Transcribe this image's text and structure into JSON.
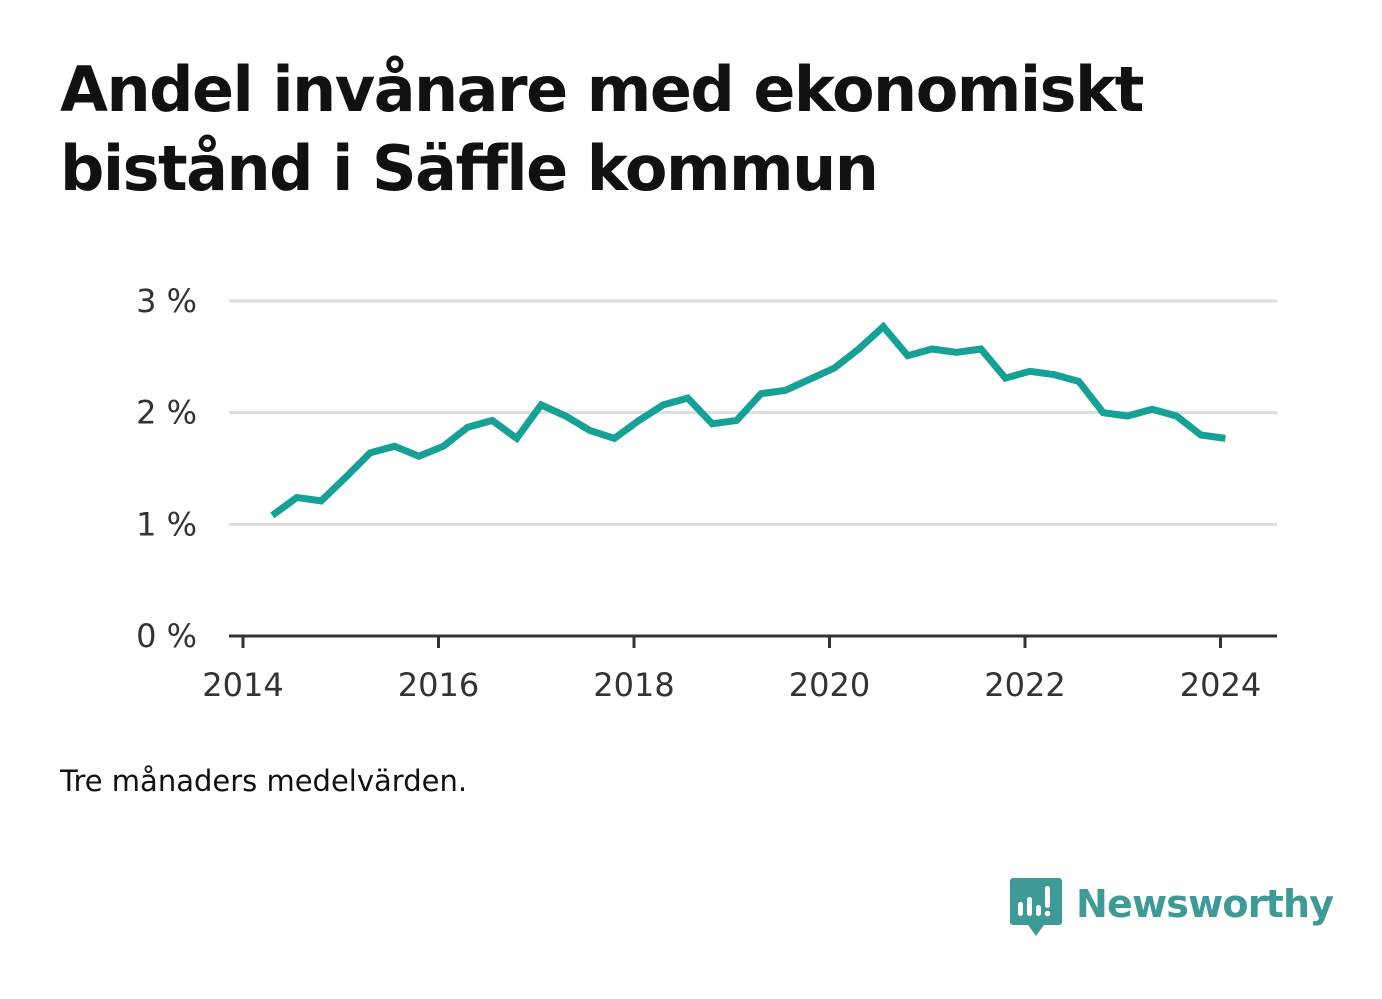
{
  "title": "Andel invånare med ekonomiskt bistånd i Säffle kommun",
  "note": "Tre månaders medelvärden.",
  "brand": {
    "name": "Newsworthy",
    "icon": "newsworthy-logo-icon",
    "color": "#3d9a96"
  },
  "chart_data": {
    "type": "line",
    "title": "Andel invånare med ekonomiskt bistånd i Säffle kommun",
    "xlabel": "",
    "ylabel": "",
    "y_ticks": [
      0,
      1,
      2,
      3
    ],
    "y_tick_labels": [
      "0 %",
      "1 %",
      "2 %",
      "3 %"
    ],
    "x_ticks": [
      2014,
      2016,
      2018,
      2020,
      2022,
      2024
    ],
    "x_tick_labels": [
      "2014",
      "2016",
      "2018",
      "2020",
      "2022",
      "2024"
    ],
    "xlim": [
      2014,
      2024.6
    ],
    "ylim": [
      0,
      3
    ],
    "grid": true,
    "line_color": "#16a196",
    "series": [
      {
        "name": "",
        "x": [
          2014.3,
          2014.55,
          2014.8,
          2015.05,
          2015.3,
          2015.55,
          2015.8,
          2016.05,
          2016.3,
          2016.55,
          2016.8,
          2017.05,
          2017.3,
          2017.55,
          2017.8,
          2018.05,
          2018.3,
          2018.55,
          2018.8,
          2019.05,
          2019.3,
          2019.55,
          2019.8,
          2020.05,
          2020.3,
          2020.55,
          2020.8,
          2021.05,
          2021.3,
          2021.55,
          2021.8,
          2022.05,
          2022.3,
          2022.55,
          2022.8,
          2023.05,
          2023.3,
          2023.55,
          2023.8,
          2024.05
        ],
        "values": [
          1.08,
          1.24,
          1.21,
          1.42,
          1.64,
          1.7,
          1.61,
          1.7,
          1.87,
          1.93,
          1.77,
          2.07,
          1.97,
          1.84,
          1.77,
          1.93,
          2.07,
          2.13,
          1.9,
          1.93,
          2.17,
          2.2,
          2.3,
          2.4,
          2.57,
          2.77,
          2.51,
          2.57,
          2.54,
          2.57,
          2.31,
          2.37,
          2.34,
          2.28,
          2.0,
          1.97,
          2.03,
          1.97,
          1.8,
          1.77
        ]
      }
    ]
  }
}
